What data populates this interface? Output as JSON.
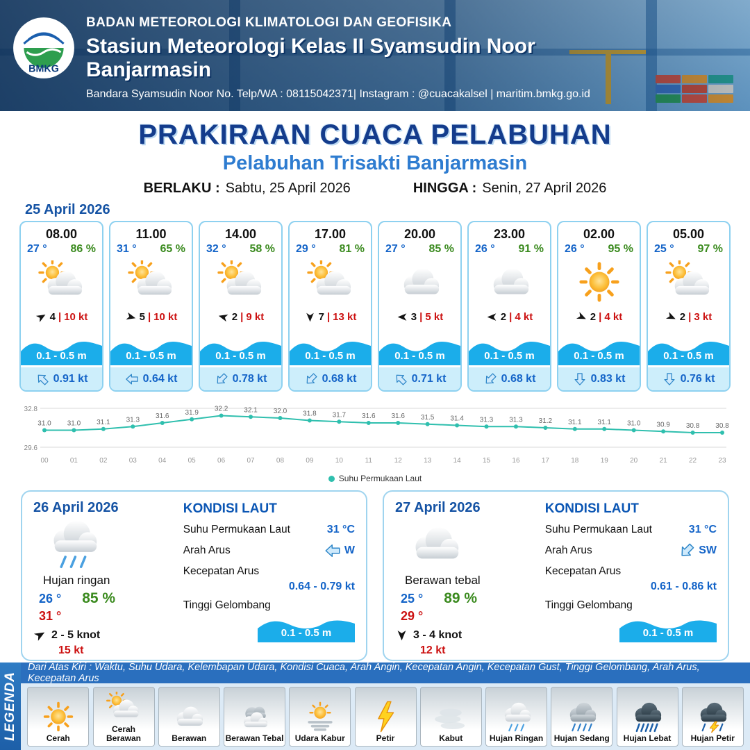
{
  "header": {
    "logo_label": "BMKG",
    "agency": "BADAN METEOROLOGI KLIMATOLOGI DAN GEOFISIKA",
    "station": "Stasiun Meteorologi Kelas II Syamsudin Noor Banjarmasin",
    "contact": "Bandara Syamsudin Noor No. Telp/WA : 08115042371| Instagram : @cuacakalsel | maritim.bmkg.go.id"
  },
  "title": {
    "main": "PRAKIRAAN CUACA PELABUHAN",
    "subtitle": "Pelabuhan Trisakti Banjarmasin",
    "valid_from_label": "BERLAKU :",
    "valid_from": "Sabtu, 25 April 2026",
    "valid_to_label": "HINGGA :",
    "valid_to": "Senin, 27 April 2026"
  },
  "labels": {
    "divider": "|"
  },
  "colors": {
    "accent_blue": "#1553a4",
    "wave_blue": "#1badea",
    "humidity_green": "#3a8a1e",
    "gust_red": "#cc1111"
  },
  "forecast": {
    "date": "25 April 2026",
    "cards": [
      {
        "time": "08.00",
        "temp": "27 °",
        "humidity": "86 %",
        "icon": "sun-cloud",
        "wind_dir_deg": 60,
        "wind_speed": "4",
        "wind_gust": "10 kt",
        "wave": "0.1 - 0.5 m",
        "current_dir_deg": 315,
        "current_speed": "0.91 kt"
      },
      {
        "time": "11.00",
        "temp": "31 °",
        "humidity": "65 %",
        "icon": "sun-cloud",
        "wind_dir_deg": 105,
        "wind_speed": "5",
        "wind_gust": "10 kt",
        "wave": "0.1 - 0.5 m",
        "current_dir_deg": 270,
        "current_speed": "0.64 kt"
      },
      {
        "time": "14.00",
        "temp": "32 °",
        "humidity": "58 %",
        "icon": "sun-cloud",
        "wind_dir_deg": 285,
        "wind_speed": "2",
        "wind_gust": "9 kt",
        "wave": "0.1 - 0.5 m",
        "current_dir_deg": 225,
        "current_speed": "0.78 kt"
      },
      {
        "time": "17.00",
        "temp": "29 °",
        "humidity": "81 %",
        "icon": "sun-cloud",
        "wind_dir_deg": 180,
        "wind_speed": "7",
        "wind_gust": "13 kt",
        "wave": "0.1 - 0.5 m",
        "current_dir_deg": 225,
        "current_speed": "0.68 kt"
      },
      {
        "time": "20.00",
        "temp": "27 °",
        "humidity": "85 %",
        "icon": "cloud",
        "wind_dir_deg": 270,
        "wind_speed": "3",
        "wind_gust": "5 kt",
        "wave": "0.1 - 0.5 m",
        "current_dir_deg": 315,
        "current_speed": "0.71 kt"
      },
      {
        "time": "23.00",
        "temp": "26 °",
        "humidity": "91 %",
        "icon": "cloud",
        "wind_dir_deg": 270,
        "wind_speed": "2",
        "wind_gust": "4 kt",
        "wave": "0.1 - 0.5 m",
        "current_dir_deg": 225,
        "current_speed": "0.68 kt"
      },
      {
        "time": "02.00",
        "temp": "26 °",
        "humidity": "95 %",
        "icon": "sun",
        "wind_dir_deg": 115,
        "wind_speed": "2",
        "wind_gust": "4 kt",
        "wave": "0.1 - 0.5 m",
        "current_dir_deg": 180,
        "current_speed": "0.83 kt"
      },
      {
        "time": "05.00",
        "temp": "25 °",
        "humidity": "97 %",
        "icon": "sun-cloud",
        "wind_dir_deg": 115,
        "wind_speed": "2",
        "wind_gust": "3 kt",
        "wave": "0.1 - 0.5 m",
        "current_dir_deg": 180,
        "current_speed": "0.76 kt"
      }
    ]
  },
  "chart_data": {
    "type": "line",
    "legend": "Suhu Permukaan Laut",
    "x": [
      "00",
      "01",
      "02",
      "03",
      "04",
      "05",
      "06",
      "07",
      "08",
      "09",
      "10",
      "11",
      "12",
      "13",
      "14",
      "15",
      "16",
      "17",
      "18",
      "19",
      "20",
      "21",
      "22",
      "23"
    ],
    "values": [
      31.0,
      31.0,
      31.1,
      31.3,
      31.6,
      31.9,
      32.2,
      32.1,
      32.0,
      31.8,
      31.7,
      31.6,
      31.6,
      31.5,
      31.4,
      31.3,
      31.3,
      31.2,
      31.1,
      31.1,
      31.0,
      30.9,
      30.8,
      30.8
    ],
    "ylim": [
      29.6,
      32.8
    ],
    "yticks": [
      "32.8",
      "29.6"
    ],
    "line_color": "#2fbfae",
    "grid": true,
    "legend_position": "bottom",
    "title": "",
    "xlabel": "",
    "ylabel": ""
  },
  "day_cards": [
    {
      "date": "26 April 2026",
      "icon": "rain-light",
      "condition": "Hujan ringan",
      "temp_min": "26 °",
      "humidity": "85 %",
      "temp_max": "31 °",
      "wind_dir_deg": 60,
      "wind": "2 - 5 knot",
      "gust": "15 kt",
      "sea": {
        "heading": "KONDISI LAUT",
        "sst_label": "Suhu Permukaan Laut",
        "sst": "31 °C",
        "current_dir_label": "Arah Arus",
        "current_dir": "W",
        "current_dir_deg": 270,
        "current_speed_label": "Kecepatan Arus",
        "current_speed": "0.64 - 0.79 kt",
        "wave_label": "Tinggi Gelombang",
        "wave": "0.1 - 0.5 m"
      }
    },
    {
      "date": "27 April 2026",
      "icon": "cloud",
      "condition": "Berawan tebal",
      "temp_min": "25 °",
      "humidity": "89 %",
      "temp_max": "29 °",
      "wind_dir_deg": 180,
      "wind": "3 - 4 knot",
      "gust": "12 kt",
      "sea": {
        "heading": "KONDISI LAUT",
        "sst_label": "Suhu Permukaan Laut",
        "sst": "31 °C",
        "current_dir_label": "Arah Arus",
        "current_dir": "SW",
        "current_dir_deg": 225,
        "current_speed_label": "Kecepatan Arus",
        "current_speed": "0.61 - 0.86 kt",
        "wave_label": "Tinggi Gelombang",
        "wave": "0.1 - 0.5 m"
      }
    }
  ],
  "legend": {
    "vertical_label": "LEGENDA",
    "description": "Dari Atas Kiri : Waktu, Suhu Udara, Kelembapan Udara, Kondisi Cuaca, Arah Angin, Kecepatan Angin, Kecepatan Gust, Tinggi Gelombang, Arah Arus, Kecepatan Arus",
    "items": [
      {
        "label": "Cerah",
        "icon": "sun"
      },
      {
        "label": "Cerah Berawan",
        "icon": "sun-cloud"
      },
      {
        "label": "Berawan",
        "icon": "cloud"
      },
      {
        "label": "Berawan Tebal",
        "icon": "cloud-dark"
      },
      {
        "label": "Udara Kabur",
        "icon": "haze"
      },
      {
        "label": "Petir",
        "icon": "lightning"
      },
      {
        "label": "Kabut",
        "icon": "fog"
      },
      {
        "label": "Hujan Ringan",
        "icon": "rain-light"
      },
      {
        "label": "Hujan Sedang",
        "icon": "rain-med"
      },
      {
        "label": "Hujan Lebat",
        "icon": "rain-heavy"
      },
      {
        "label": "Hujan Petir",
        "icon": "rain-thunder"
      }
    ]
  }
}
